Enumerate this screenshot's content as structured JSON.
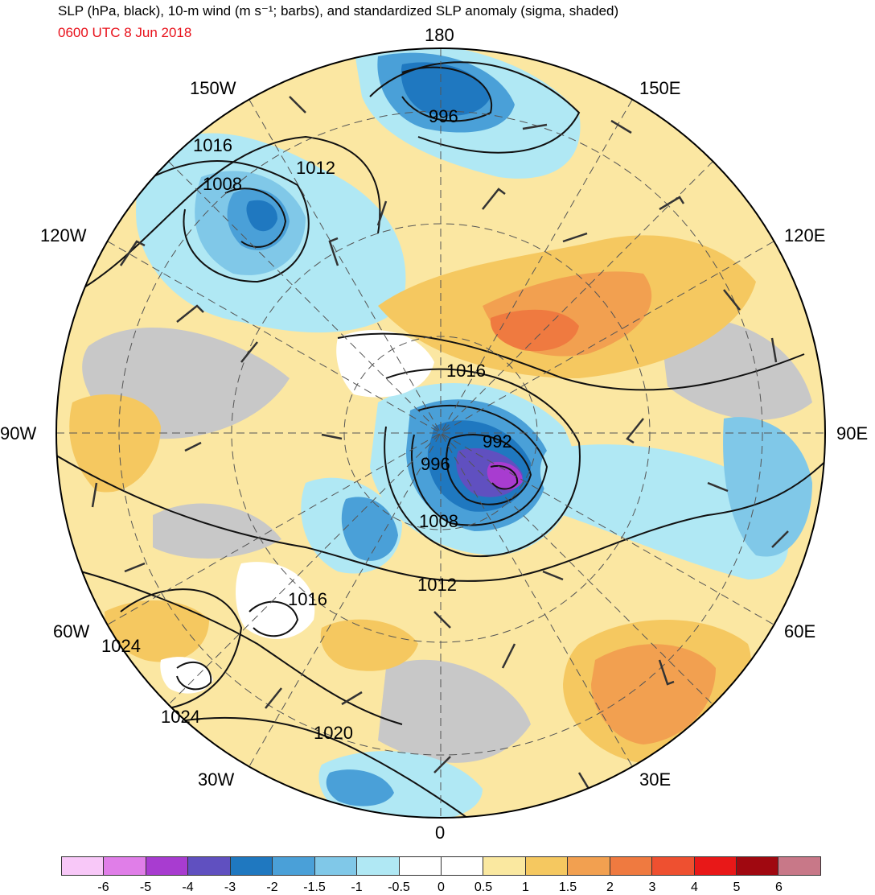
{
  "header": {
    "title": "SLP (hPa, black), 10-m wind (m s⁻¹; barbs), and standardized SLP anomaly (sigma, shaded)",
    "valid_time": "0600 UTC 8 Jun 2018"
  },
  "longitude_labels": {
    "lon_180": "180",
    "lon_150w": "150W",
    "lon_150e": "150E",
    "lon_120w": "120W",
    "lon_120e": "120E",
    "lon_90w": "90W",
    "lon_90e": "90E",
    "lon_60w": "60W",
    "lon_60e": "60E",
    "lon_30w": "30W",
    "lon_30e": "30E",
    "lon_0": "0"
  },
  "isobar_labels": {
    "l996_north": "996",
    "l1016_west": "1016",
    "l1012_north": "1012",
    "l1008_west": "1008",
    "l1016_center": "1016",
    "l992": "992",
    "l996_center": "996",
    "l1008_center": "1008",
    "l1012_south": "1012",
    "l1016_atlantic": "1016",
    "l1024_west": "1024",
    "l1024_southwest": "1024",
    "l1020": "1020"
  },
  "colorbar": {
    "colors": [
      "#f8c8f8",
      "#e07ee8",
      "#a83cd0",
      "#6050c0",
      "#1f78c0",
      "#4aa0d8",
      "#80c8e8",
      "#b0e8f4",
      "#ffffff",
      "#ffffff",
      "#fae8a0",
      "#f5c860",
      "#f2a050",
      "#ef7a40",
      "#ee5030",
      "#e81818",
      "#a00810",
      "#c87888"
    ],
    "ticks": [
      "-6",
      "-5",
      "-4",
      "-3",
      "-2",
      "-1.5",
      "-1",
      "-0.5",
      "0",
      "0.5",
      "1",
      "1.5",
      "2",
      "3",
      "4",
      "5",
      "6"
    ]
  }
}
